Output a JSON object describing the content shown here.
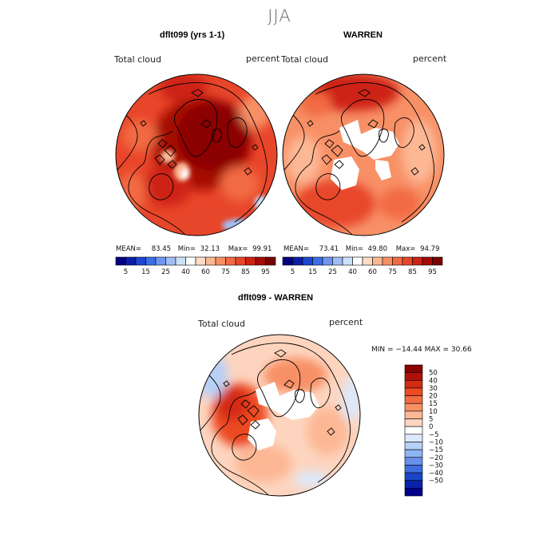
{
  "figure": {
    "title": "JJA"
  },
  "panels": [
    {
      "id": "model",
      "title": "dflt099 (yrs 1-1)",
      "variable": "Total cloud",
      "units": "percent",
      "stats": {
        "mean_label": "MEAN=",
        "mean": "83.45",
        "min_label": "Min=",
        "min": "32.13",
        "max_label": "Max=",
        "max": "99.91"
      }
    },
    {
      "id": "obs",
      "title": "WARREN",
      "variable": "Total cloud",
      "units": "percent",
      "stats": {
        "mean_label": "MEAN=",
        "mean": "73.41",
        "min_label": "Min=",
        "min": "49.80",
        "max_label": "Max=",
        "max": "94.79"
      }
    },
    {
      "id": "diff",
      "title": "dflt099 - WARREN",
      "variable": "Total cloud",
      "units": "percent",
      "stats_text": "MIN = −14.44 MAX =  30.66"
    }
  ],
  "abs_colorbar": {
    "colors": [
      "#00007f",
      "#0a1ea8",
      "#1e46d2",
      "#3c6ee6",
      "#6e96f0",
      "#a0bef5",
      "#cde1fa",
      "#ffffff",
      "#fddbc7",
      "#fcb895",
      "#f89066",
      "#f26b43",
      "#e8462a",
      "#cd2314",
      "#a50a06",
      "#780000"
    ],
    "tick_labels": [
      "5",
      "15",
      "25",
      "40",
      "60",
      "75",
      "85",
      "95"
    ]
  },
  "diff_colorbar": {
    "colors_top_to_bottom": [
      "#8b0000",
      "#b0100a",
      "#d42a12",
      "#ec4a22",
      "#f26b43",
      "#f89066",
      "#fcb895",
      "#fdd5bf",
      "#ffffff",
      "#dce9fb",
      "#b8d0f7",
      "#8eb4f2",
      "#6890ea",
      "#3f6cde",
      "#1a44c8",
      "#0a22a8",
      "#00008b"
    ],
    "tick_labels": [
      "50",
      "40",
      "30",
      "20",
      "15",
      "10",
      "5",
      "0",
      "−5",
      "−10",
      "−15",
      "−20",
      "−30",
      "−40",
      "−50"
    ]
  },
  "colors": {
    "continent_outline": "#000000",
    "missing_data": "#ffffff"
  }
}
